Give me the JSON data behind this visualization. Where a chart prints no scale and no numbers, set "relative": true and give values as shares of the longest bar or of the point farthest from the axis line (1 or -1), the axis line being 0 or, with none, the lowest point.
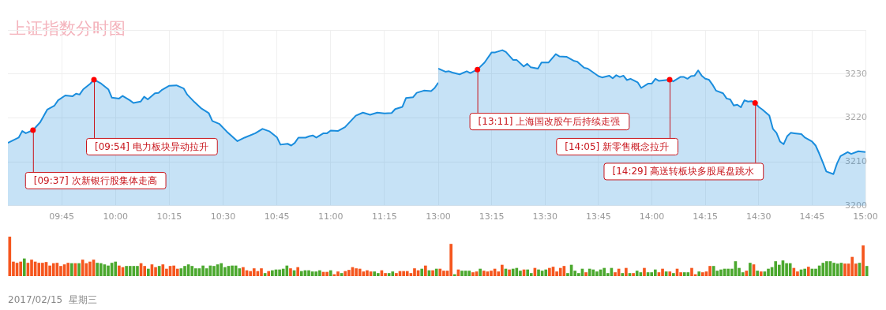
{
  "chart_data": [
    {
      "type": "area",
      "title": "上证指数分时图",
      "color": "#1a8ddd",
      "marker": "none",
      "grid": true,
      "tick_labels": "x",
      "x": [
        9.5,
        9.55,
        9.5667,
        9.5833,
        9.6167,
        9.65,
        9.6833,
        9.7167,
        9.7333,
        9.7667,
        9.8,
        9.8167,
        9.8333,
        9.85,
        9.8833,
        9.9,
        9.9333,
        9.9667,
        9.9833,
        10.0167,
        10.0333,
        10.0667,
        10.0833,
        10.1167,
        10.1333,
        10.15,
        10.1833,
        10.2,
        10.2167,
        10.25,
        10.2833,
        10.3167,
        10.3333,
        10.3667,
        10.4,
        10.4333,
        10.45,
        10.4833,
        10.5167,
        10.5667,
        10.6,
        10.65,
        10.6833,
        10.7167,
        10.75,
        10.7667,
        10.8,
        10.8167,
        10.8333,
        10.85,
        10.8833,
        10.9,
        10.9167,
        10.9333,
        10.9667,
        10.9833,
        11,
        11.0333,
        11.0667,
        11.1167,
        11.15,
        11.1833,
        11.2167,
        11.25,
        11.2833,
        11.3,
        11.3333,
        11.35,
        11.3833,
        11.4,
        11.4333,
        11.4667,
        11.4833,
        11.5
      ],
      "values": [
        3214.3,
        3215.5,
        3217.0,
        3216.5,
        3217.2,
        3219.0,
        3221.9,
        3222.8,
        3224.0,
        3225.1,
        3224.9,
        3225.5,
        3225.3,
        3226.5,
        3227.8,
        3228.7,
        3227.8,
        3226.5,
        3224.6,
        3224.4,
        3225.0,
        3224.0,
        3223.4,
        3223.7,
        3224.8,
        3224.2,
        3225.6,
        3225.7,
        3226.4,
        3227.3,
        3227.4,
        3226.7,
        3225.3,
        3223.6,
        3222.1,
        3221.1,
        3219.3,
        3218.6,
        3216.9,
        3214.7,
        3215.5,
        3216.5,
        3217.5,
        3216.9,
        3215.6,
        3213.9,
        3214.1,
        3213.7,
        3214.3,
        3215.5,
        3215.5,
        3215.8,
        3216.0,
        3215.5,
        3216.5,
        3216.5,
        3217.1,
        3217.0,
        3217.9,
        3220.5,
        3221.2,
        3220.7,
        3221.2,
        3221.0,
        3221.1,
        3222.0,
        3222.5,
        3224.5,
        3224.7,
        3225.7,
        3226.2,
        3226.1,
        3226.8,
        3228.0
      ],
      "xlim": [
        9.5,
        11.5
      ],
      "xticks": [
        {
          "value": 9.75,
          "label": "09:45"
        },
        {
          "value": 10,
          "label": "10:00"
        },
        {
          "value": 10.25,
          "label": "10:15"
        },
        {
          "value": 10.5,
          "label": "10:30"
        },
        {
          "value": 10.75,
          "label": "10:45"
        },
        {
          "value": 11,
          "label": "11:00"
        },
        {
          "value": 11.25,
          "label": "11:15"
        }
      ],
      "ylim": [
        3200,
        3240
      ],
      "yticks": [
        3200,
        3210,
        3220,
        3230,
        {
          "value": 3240,
          "label": null
        }
      ],
      "annotations": [
        {
          "text": "[09:37] 次新银行股集体走高",
          "x": 9.6167,
          "y": 3217.2
        },
        {
          "text": "[09:54] 电力板块异动拉升",
          "x": 9.9,
          "y": 3228.7
        }
      ]
    },
    {
      "type": "area",
      "color": "#1a8ddd",
      "marker": "none",
      "grid": true,
      "x": [
        13,
        13.0333,
        13.05,
        13.0667,
        13.1,
        13.1333,
        13.15,
        13.1833,
        13.2167,
        13.25,
        13.2667,
        13.3,
        13.3167,
        13.35,
        13.3667,
        13.4,
        13.4167,
        13.4333,
        13.4667,
        13.4833,
        13.5167,
        13.55,
        13.5667,
        13.6,
        13.6333,
        13.65,
        13.6833,
        13.7,
        13.75,
        13.7667,
        13.8,
        13.8167,
        13.8333,
        13.85,
        13.8667,
        13.8833,
        13.9,
        13.9333,
        13.95,
        13.9833,
        14,
        14.0167,
        14.0333,
        14.0667,
        14.0833,
        14.1,
        14.1333,
        14.15,
        14.1667,
        14.1833,
        14.2,
        14.2167,
        14.2333,
        14.25,
        14.2667,
        14.2833,
        14.3,
        14.3333,
        14.35,
        14.3667,
        14.3833,
        14.4,
        14.4167,
        14.4333,
        14.45,
        14.4667,
        14.4833,
        14.5,
        14.5167,
        14.55,
        14.5667,
        14.5833,
        14.6,
        14.6167,
        14.6333,
        14.65,
        14.6667,
        14.7,
        14.7167,
        14.75,
        14.7667,
        14.7833,
        14.8,
        14.8167,
        14.85,
        14.8667,
        14.8833,
        14.9167,
        14.9333,
        14.9667,
        15
      ],
      "values": [
        3231.2,
        3230.5,
        3230.6,
        3230.3,
        3229.9,
        3230.6,
        3230.2,
        3231.0,
        3232.6,
        3234.9,
        3234.9,
        3235.4,
        3235.0,
        3233.2,
        3233.2,
        3231.7,
        3232.3,
        3231.5,
        3231.2,
        3232.6,
        3232.6,
        3234.5,
        3234.0,
        3233.9,
        3233.0,
        3232.8,
        3231.4,
        3231.2,
        3229.5,
        3229.2,
        3229.6,
        3229.0,
        3229.7,
        3229.3,
        3229.6,
        3228.6,
        3228.9,
        3228.1,
        3226.8,
        3227.8,
        3227.8,
        3228.9,
        3228.4,
        3228.6,
        3228.7,
        3228.3,
        3229.3,
        3229.3,
        3228.9,
        3229.5,
        3229.6,
        3230.8,
        3229.6,
        3228.9,
        3228.7,
        3227.6,
        3226.2,
        3225.6,
        3224.4,
        3224.2,
        3222.8,
        3223.0,
        3222.4,
        3224.0,
        3223.7,
        3223.8,
        3223.4,
        3222.5,
        3221.9,
        3220.5,
        3217.5,
        3216.6,
        3214.6,
        3214.0,
        3215.8,
        3216.6,
        3216.5,
        3216.3,
        3215.5,
        3214.6,
        3213.7,
        3211.9,
        3209.9,
        3207.8,
        3207.2,
        3209.6,
        3211.3,
        3212.2,
        3211.8,
        3212.4,
        3212.2
      ],
      "xlim": [
        13,
        15
      ],
      "xticks": [
        {
          "value": 13,
          "label": "13:00"
        },
        {
          "value": 13.25,
          "label": "13:15"
        },
        {
          "value": 13.5,
          "label": "13:30"
        },
        {
          "value": 13.75,
          "label": "13:45"
        },
        {
          "value": 14,
          "label": "14:00"
        },
        {
          "value": 14.25,
          "label": "14:15"
        },
        {
          "value": 14.5,
          "label": "14:30"
        },
        {
          "value": 14.75,
          "label": "14:45"
        },
        {
          "value": 15,
          "label": "15:00"
        }
      ],
      "ylim": [
        3200,
        3240
      ],
      "yticks": [
        3200,
        3210,
        3220,
        3230,
        {
          "value": 3240,
          "label": null
        }
      ],
      "annotations": [
        {
          "text": "[13:11] 上海国改股午后持续走强",
          "x": 13.1833,
          "y": 3231.0
        },
        {
          "text": "[14:05] 新零售概念拉升",
          "x": 14.0833,
          "y": 3228.7
        },
        {
          "text": "[14:29] 高送转板块多股尾盘跳水",
          "x": 14.4833,
          "y": 3223.4
        }
      ]
    },
    {
      "type": "bar",
      "relative": true,
      "tick_labels": false,
      "categories": [
        null,
        null,
        null,
        null,
        null,
        null,
        null,
        null,
        null,
        null,
        null,
        null,
        null,
        null,
        null,
        null,
        null,
        null,
        null,
        null,
        null,
        null,
        null,
        null,
        null,
        null,
        null,
        null,
        null,
        null,
        null,
        null,
        null,
        null,
        null,
        null,
        null,
        null,
        null,
        null,
        null,
        null,
        null,
        null,
        null,
        null,
        null,
        null,
        null,
        null,
        null,
        null,
        null,
        null,
        null,
        null,
        null,
        null,
        null,
        null,
        null,
        null,
        null,
        null,
        null,
        null,
        null,
        null,
        null,
        null,
        null,
        null,
        null,
        null,
        null,
        null,
        null,
        null,
        null,
        null,
        null,
        null,
        null,
        null,
        null,
        null,
        null,
        null,
        null,
        null,
        null,
        null,
        null,
        null,
        null,
        null,
        null,
        null,
        null,
        null,
        null,
        null,
        null,
        null,
        null,
        null,
        null,
        null,
        null,
        null,
        null,
        null,
        null,
        null,
        null,
        null,
        null,
        null,
        null,
        null,
        null,
        null,
        null,
        null,
        null,
        null,
        null,
        null,
        null,
        null,
        null,
        null,
        null,
        null,
        null,
        null,
        null,
        null,
        null,
        null,
        null,
        null,
        null,
        null,
        null,
        null,
        null,
        null,
        null,
        null,
        null,
        null,
        null,
        null,
        null,
        null,
        null,
        null,
        null,
        null,
        null,
        null,
        null,
        null,
        null,
        null,
        null,
        null,
        null,
        null,
        null,
        null,
        null,
        null,
        null,
        null,
        null,
        null,
        null,
        null,
        null,
        null,
        null,
        null,
        null,
        null,
        null,
        null,
        null,
        null,
        null,
        null,
        null,
        null,
        null,
        null,
        null,
        null,
        null,
        null,
        null,
        null,
        null,
        null,
        null,
        null,
        null,
        null,
        null,
        null,
        null,
        null,
        null,
        null,
        null,
        null,
        null,
        null,
        null,
        null,
        null,
        null,
        null,
        null,
        null,
        null,
        null,
        null,
        null,
        null,
        null,
        null,
        null,
        null,
        null,
        null
      ],
      "values": [
        1,
        0.36,
        0.33,
        0.36,
        0.44,
        0.33,
        0.41,
        0.36,
        0.33,
        0.33,
        0.35,
        0.26,
        0.32,
        0.33,
        0.25,
        0.29,
        0.33,
        0.32,
        0.32,
        0.32,
        0.41,
        0.32,
        0.36,
        0.41,
        0.33,
        0.32,
        0.29,
        0.26,
        0.33,
        0.36,
        0.26,
        0.22,
        0.25,
        0.25,
        0.25,
        0.25,
        0.32,
        0.25,
        0.18,
        0.29,
        0.22,
        0.25,
        0.29,
        0.18,
        0.25,
        0.26,
        0.18,
        0.19,
        0.25,
        0.29,
        0.25,
        0.19,
        0.19,
        0.26,
        0.19,
        0.26,
        0.25,
        0.29,
        0.32,
        0.22,
        0.25,
        0.26,
        0.26,
        0.19,
        0.22,
        0.14,
        0.12,
        0.19,
        0.12,
        0.19,
        0.07,
        0.12,
        0.14,
        0.16,
        0.16,
        0.18,
        0.26,
        0.19,
        0.14,
        0.22,
        0.12,
        0.14,
        0.14,
        0.11,
        0.11,
        0.14,
        0.1,
        0.1,
        0.14,
        0.04,
        0.11,
        0.07,
        0.12,
        0.15,
        0.22,
        0.19,
        0.18,
        0.11,
        0.14,
        0.11,
        0.11,
        0.07,
        0.14,
        0.07,
        0.07,
        0.11,
        0.07,
        0.12,
        0.12,
        0.12,
        0.07,
        0.19,
        0.14,
        0.18,
        0.26,
        0.14,
        0.14,
        0.18,
        0.18,
        0.13,
        0.13,
        0.81,
        0.04,
        0.16,
        0.13,
        0.13,
        0.13,
        0.09,
        0.11,
        0.18,
        0.13,
        0.11,
        0.13,
        0.18,
        0.11,
        0.28,
        0.18,
        0.16,
        0.18,
        0.2,
        0.13,
        0.16,
        0.16,
        0.07,
        0.2,
        0.16,
        0.13,
        0.16,
        0.2,
        0.23,
        0.11,
        0.2,
        0.25,
        0.07,
        0.28,
        0.13,
        0.07,
        0.18,
        0.09,
        0.18,
        0.16,
        0.11,
        0.16,
        0.2,
        0.07,
        0.2,
        0.09,
        0.18,
        0.07,
        0.2,
        0.07,
        0.07,
        0.13,
        0.09,
        0.2,
        0.09,
        0.09,
        0.16,
        0.09,
        0.18,
        0.11,
        0.11,
        0.07,
        0.18,
        0.09,
        0.09,
        0.09,
        0.2,
        0.04,
        0.11,
        0.09,
        0.11,
        0.25,
        0.25,
        0.13,
        0.16,
        0.18,
        0.18,
        0.18,
        0.37,
        0.2,
        0.09,
        0.13,
        0.33,
        0.29,
        0.13,
        0.11,
        0.11,
        0.18,
        0.22,
        0.37,
        0.28,
        0.39,
        0.32,
        0.32,
        0.2,
        0.11,
        0.16,
        0.18,
        0.23,
        0.18,
        0.18,
        0.26,
        0.33,
        0.37,
        0.37,
        0.33,
        0.31,
        0.33,
        0.31,
        0.31,
        0.48,
        0.31,
        0.33,
        0.77,
        0.25
      ],
      "colors": [
        "#f5561e",
        "#f5561e",
        "#f5561e",
        "#f5561e",
        "#4ba82e",
        "#f5561e",
        "#f5561e",
        "#f5561e",
        "#f5561e",
        "#f5561e",
        "#f5561e",
        "#f5561e",
        "#f5561e",
        "#f5561e",
        "#f5561e",
        "#f5561e",
        "#f5561e",
        "#4ba82e",
        "#f5561e",
        "#4ba82e",
        "#f5561e",
        "#f5561e",
        "#f5561e",
        "#f5561e",
        "#4ba82e",
        "#4ba82e",
        "#4ba82e",
        "#4ba82e",
        "#4ba82e",
        "#4ba82e",
        "#f5561e",
        "#f5561e",
        "#4ba82e",
        "#4ba82e",
        "#4ba82e",
        "#4ba82e",
        "#f5561e",
        "#f5561e",
        "#4ba82e",
        "#f5561e",
        "#f5561e",
        "#4ba82e",
        "#f5561e",
        "#f5561e",
        "#f5561e",
        "#f5561e",
        "#f5561e",
        "#4ba82e",
        "#4ba82e",
        "#4ba82e",
        "#4ba82e",
        "#4ba82e",
        "#4ba82e",
        "#4ba82e",
        "#4ba82e",
        "#4ba82e",
        "#4ba82e",
        "#4ba82e",
        "#4ba82e",
        "#4ba82e",
        "#4ba82e",
        "#4ba82e",
        "#4ba82e",
        "#4ba82e",
        "#f5561e",
        "#f5561e",
        "#f5561e",
        "#f5561e",
        "#f5561e",
        "#f5561e",
        "#4ba82e",
        "#f5561e",
        "#4ba82e",
        "#4ba82e",
        "#4ba82e",
        "#4ba82e",
        "#4ba82e",
        "#f5561e",
        "#4ba82e",
        "#f5561e",
        "#4ba82e",
        "#4ba82e",
        "#4ba82e",
        "#4ba82e",
        "#4ba82e",
        "#4ba82e",
        "#f5561e",
        "#f5561e",
        "#4ba82e",
        "#f5561e",
        "#f5561e",
        "#4ba82e",
        "#f5561e",
        "#f5561e",
        "#f5561e",
        "#f5561e",
        "#f5561e",
        "#f5561e",
        "#f5561e",
        "#f5561e",
        "#4ba82e",
        "#4ba82e",
        "#f5561e",
        "#f5561e",
        "#4ba82e",
        "#4ba82e",
        "#f5561e",
        "#f5561e",
        "#f5561e",
        "#f5561e",
        "#f5561e",
        "#f5561e",
        "#f5561e",
        "#4ba82e",
        "#f5561e",
        "#4ba82e",
        "#f5561e",
        "#4ba82e",
        "#f5561e",
        "#f5561e",
        "#f5561e",
        "#f5561e",
        "#4ba82e",
        "#f5561e",
        "#4ba82e",
        "#4ba82e",
        "#4ba82e",
        "#f5561e",
        "#f5561e",
        "#4ba82e",
        "#f5561e",
        "#f5561e",
        "#f5561e",
        "#f5561e",
        "#f5561e",
        "#f5561e",
        "#4ba82e",
        "#f5561e",
        "#4ba82e",
        "#4ba82e",
        "#4ba82e",
        "#f5561e",
        "#4ba82e",
        "#4ba82e",
        "#f5561e",
        "#4ba82e",
        "#4ba82e",
        "#4ba82e",
        "#f5561e",
        "#f5561e",
        "#f5561e",
        "#f5561e",
        "#f5561e",
        "#4ba82e",
        "#4ba82e",
        "#4ba82e",
        "#4ba82e",
        "#4ba82e",
        "#f5561e",
        "#4ba82e",
        "#4ba82e",
        "#4ba82e",
        "#4ba82e",
        "#4ba82e",
        "#4ba82e",
        "#4ba82e",
        "#f5561e",
        "#f5561e",
        "#4ba82e",
        "#f5561e",
        "#4ba82e",
        "#f5561e",
        "#4ba82e",
        "#4ba82e",
        "#f5561e",
        "#4ba82e",
        "#4ba82e",
        "#4ba82e",
        "#f5561e",
        "#f5561e",
        "#4ba82e",
        "#f5561e",
        "#4ba82e",
        "#f5561e",
        "#f5561e",
        "#4ba82e",
        "#4ba82e",
        "#f5561e",
        "#f5561e",
        "#4ba82e",
        "#f5561e",
        "#f5561e",
        "#f5561e",
        "#4ba82e",
        "#4ba82e",
        "#4ba82e",
        "#4ba82e",
        "#4ba82e",
        "#4ba82e",
        "#4ba82e",
        "#4ba82e",
        "#4ba82e",
        "#f5561e",
        "#4ba82e",
        "#f5561e",
        "#4ba82e",
        "#f5561e",
        "#4ba82e",
        "#4ba82e",
        "#4ba82e",
        "#4ba82e",
        "#4ba82e",
        "#4ba82e",
        "#4ba82e",
        "#4ba82e",
        "#f5561e",
        "#f5561e",
        "#4ba82e",
        "#4ba82e",
        "#f5561e",
        "#4ba82e",
        "#4ba82e",
        "#4ba82e",
        "#4ba82e",
        "#4ba82e",
        "#4ba82e",
        "#4ba82e",
        "#4ba82e",
        "#4ba82e",
        "#f5561e",
        "#f5561e",
        "#f5561e",
        "#f5561e",
        "#4ba82e",
        "#f5561e",
        "#4ba82e"
      ],
      "annotations": [
        "2017/02/15  星期三"
      ]
    }
  ]
}
